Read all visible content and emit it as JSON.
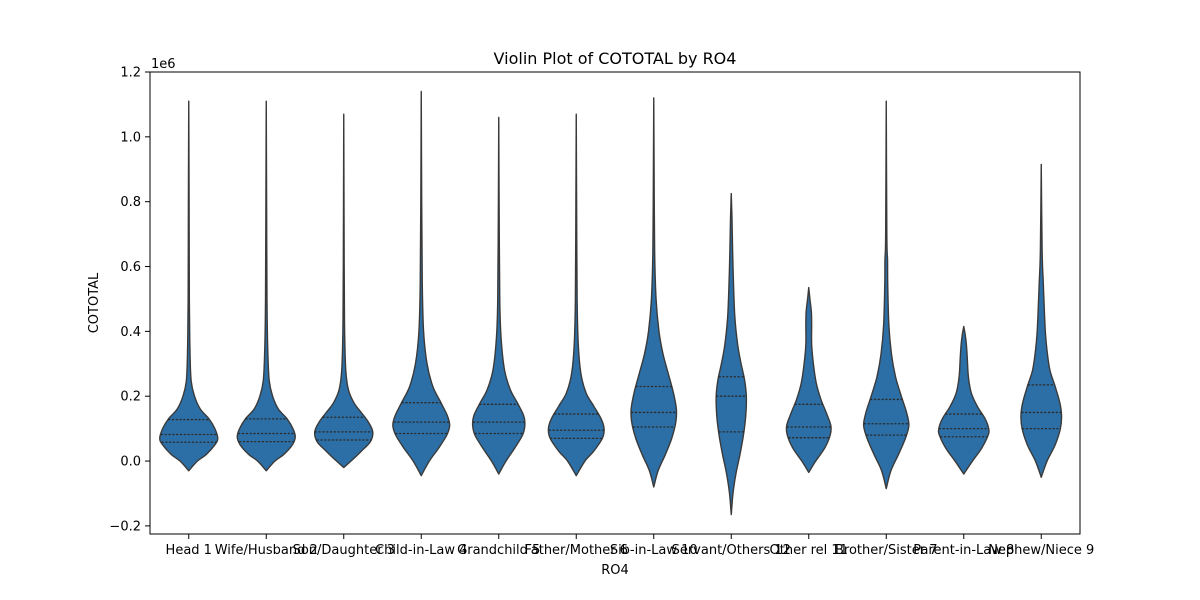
{
  "chart_data": {
    "type": "violin",
    "title": "Violin Plot of COTOTAL by RO4",
    "xlabel": "RO4",
    "ylabel": "COTOTAL",
    "y_offset_label": "1e6",
    "ylim": [
      -0.225,
      1.2
    ],
    "y_ticks": [
      -0.2,
      0.0,
      0.2,
      0.4,
      0.6,
      0.8,
      1.0,
      1.2
    ],
    "y_tick_labels": [
      "−0.2",
      "0.0",
      "0.2",
      "0.4",
      "0.6",
      "0.8",
      "1.0",
      "1.2"
    ],
    "color": "#2c6fa6",
    "outline_color": "#3a3a3a",
    "categories": [
      "Head 1",
      "Wife/Husband 2",
      "Son/Daughter 3",
      "Child-in-Law 4",
      "Grandchild 5",
      "Father/Mother 6",
      "Sib-in-Law 10",
      "Servant/Others 12",
      "Other rel 11",
      "Brother/Sister 7",
      "Parent-in-Law 8",
      "Nephew/Niece 9"
    ],
    "violins": [
      {
        "min": -0.03,
        "max": 1.11,
        "q1": 0.058,
        "median": 0.082,
        "q3": 0.128,
        "profile": [
          [
            -0.03,
            0
          ],
          [
            0.0,
            0.3
          ],
          [
            0.02,
            0.6
          ],
          [
            0.05,
            0.9
          ],
          [
            0.07,
            1.0
          ],
          [
            0.1,
            0.9
          ],
          [
            0.13,
            0.7
          ],
          [
            0.16,
            0.4
          ],
          [
            0.2,
            0.2
          ],
          [
            0.25,
            0.08
          ],
          [
            0.35,
            0.04
          ],
          [
            0.5,
            0.02
          ],
          [
            0.8,
            0.012
          ],
          [
            1.11,
            0
          ]
        ]
      },
      {
        "min": -0.03,
        "max": 1.11,
        "q1": 0.06,
        "median": 0.085,
        "q3": 0.13,
        "profile": [
          [
            -0.03,
            0
          ],
          [
            0.0,
            0.3
          ],
          [
            0.02,
            0.6
          ],
          [
            0.05,
            0.9
          ],
          [
            0.075,
            1.0
          ],
          [
            0.1,
            0.92
          ],
          [
            0.13,
            0.72
          ],
          [
            0.16,
            0.42
          ],
          [
            0.2,
            0.22
          ],
          [
            0.25,
            0.1
          ],
          [
            0.35,
            0.05
          ],
          [
            0.5,
            0.025
          ],
          [
            0.8,
            0.012
          ],
          [
            1.11,
            0
          ]
        ]
      },
      {
        "min": -0.02,
        "max": 1.07,
        "q1": 0.065,
        "median": 0.09,
        "q3": 0.135,
        "profile": [
          [
            -0.02,
            0
          ],
          [
            0.0,
            0.25
          ],
          [
            0.03,
            0.6
          ],
          [
            0.06,
            0.92
          ],
          [
            0.09,
            1.0
          ],
          [
            0.12,
            0.85
          ],
          [
            0.15,
            0.6
          ],
          [
            0.18,
            0.35
          ],
          [
            0.22,
            0.16
          ],
          [
            0.28,
            0.07
          ],
          [
            0.4,
            0.03
          ],
          [
            0.6,
            0.015
          ],
          [
            1.07,
            0
          ]
        ]
      },
      {
        "min": -0.045,
        "max": 1.14,
        "q1": 0.085,
        "median": 0.12,
        "q3": 0.18,
        "profile": [
          [
            -0.045,
            0
          ],
          [
            0.0,
            0.28
          ],
          [
            0.04,
            0.6
          ],
          [
            0.08,
            0.88
          ],
          [
            0.11,
            0.98
          ],
          [
            0.14,
            0.9
          ],
          [
            0.18,
            0.68
          ],
          [
            0.23,
            0.4
          ],
          [
            0.3,
            0.2
          ],
          [
            0.4,
            0.08
          ],
          [
            0.55,
            0.035
          ],
          [
            0.8,
            0.015
          ],
          [
            1.14,
            0
          ]
        ]
      },
      {
        "min": -0.04,
        "max": 1.06,
        "q1": 0.085,
        "median": 0.12,
        "q3": 0.175,
        "profile": [
          [
            -0.04,
            0
          ],
          [
            0.0,
            0.25
          ],
          [
            0.04,
            0.55
          ],
          [
            0.08,
            0.82
          ],
          [
            0.11,
            0.9
          ],
          [
            0.14,
            0.86
          ],
          [
            0.18,
            0.64
          ],
          [
            0.22,
            0.4
          ],
          [
            0.28,
            0.2
          ],
          [
            0.38,
            0.08
          ],
          [
            0.5,
            0.035
          ],
          [
            0.8,
            0.012
          ],
          [
            1.06,
            0
          ]
        ]
      },
      {
        "min": -0.045,
        "max": 1.07,
        "q1": 0.07,
        "median": 0.095,
        "q3": 0.145,
        "profile": [
          [
            -0.045,
            0
          ],
          [
            0.0,
            0.3
          ],
          [
            0.03,
            0.6
          ],
          [
            0.07,
            0.9
          ],
          [
            0.1,
            0.96
          ],
          [
            0.13,
            0.86
          ],
          [
            0.17,
            0.6
          ],
          [
            0.21,
            0.34
          ],
          [
            0.27,
            0.16
          ],
          [
            0.36,
            0.07
          ],
          [
            0.5,
            0.03
          ],
          [
            0.8,
            0.012
          ],
          [
            1.07,
            0
          ]
        ]
      },
      {
        "min": -0.08,
        "max": 1.12,
        "q1": 0.105,
        "median": 0.15,
        "q3": 0.23,
        "profile": [
          [
            -0.08,
            0
          ],
          [
            -0.03,
            0.15
          ],
          [
            0.02,
            0.4
          ],
          [
            0.07,
            0.62
          ],
          [
            0.12,
            0.76
          ],
          [
            0.16,
            0.78
          ],
          [
            0.21,
            0.68
          ],
          [
            0.27,
            0.5
          ],
          [
            0.33,
            0.32
          ],
          [
            0.4,
            0.18
          ],
          [
            0.5,
            0.08
          ],
          [
            0.65,
            0.03
          ],
          [
            0.9,
            0.012
          ],
          [
            1.12,
            0
          ]
        ]
      },
      {
        "min": -0.165,
        "max": 0.825,
        "q1": 0.09,
        "median": 0.2,
        "q3": 0.26,
        "profile": [
          [
            -0.165,
            0
          ],
          [
            -0.1,
            0.06
          ],
          [
            -0.04,
            0.16
          ],
          [
            0.02,
            0.3
          ],
          [
            0.08,
            0.42
          ],
          [
            0.14,
            0.5
          ],
          [
            0.2,
            0.52
          ],
          [
            0.25,
            0.46
          ],
          [
            0.3,
            0.34
          ],
          [
            0.36,
            0.22
          ],
          [
            0.45,
            0.12
          ],
          [
            0.6,
            0.06
          ],
          [
            0.75,
            0.025
          ],
          [
            0.825,
            0
          ]
        ]
      },
      {
        "min": -0.035,
        "max": 0.535,
        "q1": 0.072,
        "median": 0.105,
        "q3": 0.175,
        "profile": [
          [
            -0.035,
            0
          ],
          [
            0.0,
            0.24
          ],
          [
            0.04,
            0.55
          ],
          [
            0.08,
            0.74
          ],
          [
            0.11,
            0.76
          ],
          [
            0.15,
            0.6
          ],
          [
            0.19,
            0.42
          ],
          [
            0.24,
            0.26
          ],
          [
            0.3,
            0.16
          ],
          [
            0.36,
            0.1
          ],
          [
            0.42,
            0.1
          ],
          [
            0.46,
            0.09
          ],
          [
            0.5,
            0.04
          ],
          [
            0.535,
            0
          ]
        ]
      },
      {
        "min": -0.085,
        "max": 1.11,
        "q1": 0.08,
        "median": 0.115,
        "q3": 0.19,
        "profile": [
          [
            -0.085,
            0
          ],
          [
            -0.03,
            0.16
          ],
          [
            0.02,
            0.42
          ],
          [
            0.07,
            0.66
          ],
          [
            0.11,
            0.78
          ],
          [
            0.15,
            0.7
          ],
          [
            0.2,
            0.52
          ],
          [
            0.26,
            0.32
          ],
          [
            0.33,
            0.18
          ],
          [
            0.42,
            0.09
          ],
          [
            0.55,
            0.05
          ],
          [
            0.62,
            0.045
          ],
          [
            0.7,
            0.02
          ],
          [
            1.11,
            0
          ]
        ]
      },
      {
        "min": -0.04,
        "max": 0.415,
        "q1": 0.075,
        "median": 0.1,
        "q3": 0.145,
        "profile": [
          [
            -0.04,
            0
          ],
          [
            0.0,
            0.3
          ],
          [
            0.04,
            0.62
          ],
          [
            0.08,
            0.84
          ],
          [
            0.1,
            0.86
          ],
          [
            0.13,
            0.74
          ],
          [
            0.17,
            0.46
          ],
          [
            0.21,
            0.26
          ],
          [
            0.26,
            0.16
          ],
          [
            0.32,
            0.12
          ],
          [
            0.36,
            0.09
          ],
          [
            0.39,
            0.05
          ],
          [
            0.415,
            0
          ]
        ]
      },
      {
        "min": -0.05,
        "max": 0.915,
        "q1": 0.1,
        "median": 0.15,
        "q3": 0.235,
        "profile": [
          [
            -0.05,
            0
          ],
          [
            0.0,
            0.2
          ],
          [
            0.05,
            0.48
          ],
          [
            0.1,
            0.66
          ],
          [
            0.14,
            0.7
          ],
          [
            0.18,
            0.64
          ],
          [
            0.23,
            0.48
          ],
          [
            0.28,
            0.3
          ],
          [
            0.34,
            0.2
          ],
          [
            0.4,
            0.14
          ],
          [
            0.48,
            0.1
          ],
          [
            0.55,
            0.07
          ],
          [
            0.65,
            0.03
          ],
          [
            0.915,
            0
          ]
        ]
      }
    ]
  }
}
